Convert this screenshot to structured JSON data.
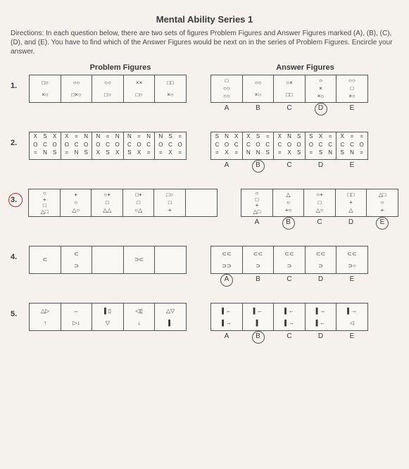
{
  "title": "Mental Ability Series 1",
  "directions": "Directions: In each question below, there are two sets of figures Problem Figures and Answer Figures marked (A), (B), (C), (D), and (E). You have to find which of the Answer Figures would be next on in the series of Problem Figures. Encircle your answer.",
  "problem_label": "Problem Figures",
  "answer_label": "Answer Figures",
  "letters": [
    "A",
    "B",
    "C",
    "D",
    "E"
  ],
  "questions": [
    {
      "num": "1.",
      "circled": false,
      "problems": [
        "□○ ×○",
        "○○ □×○",
        "○○ □○",
        "×× □○",
        "□□ ×○"
      ],
      "answers": [
        "□ ○○ ○○",
        "○○ ×○",
        "○× □□",
        "○ × ×○",
        "○○ □ ×○"
      ],
      "answer_circled": "D"
    },
    {
      "num": "2.",
      "circled": false,
      "grid": true,
      "problems": [
        [
          "X",
          "S",
          "X",
          "O",
          "C",
          "O",
          "=",
          "N",
          "S"
        ],
        [
          "X",
          "=",
          "N",
          "O",
          "C",
          "O",
          "=",
          "N",
          "S"
        ],
        [
          "N",
          "=",
          "N",
          "O",
          "C",
          "O",
          "X",
          "S",
          "X"
        ],
        [
          "N",
          "=",
          "N",
          "C",
          "O",
          "C",
          "S",
          "X",
          "="
        ],
        [
          "N",
          "S",
          "=",
          "O",
          "C",
          "O",
          "=",
          "X",
          "="
        ]
      ],
      "answers": [
        [
          "S",
          "N",
          "X",
          "C",
          "O",
          "C",
          "=",
          "X",
          "="
        ],
        [
          "X",
          "S",
          "=",
          "C",
          "O",
          "C",
          "N",
          "N",
          "S"
        ],
        [
          "X",
          "N",
          "S",
          "C",
          "O",
          "O",
          "=",
          "X",
          "S"
        ],
        [
          "S",
          "X",
          "=",
          "O",
          "C",
          "C",
          "=",
          "S",
          "N"
        ],
        [
          "X",
          "=",
          "=",
          "C",
          "C",
          "O",
          "S",
          "N",
          "="
        ]
      ],
      "answer_circled": "B"
    },
    {
      "num": "3.",
      "circled": true,
      "problems": [
        "○ + □ △□",
        "+ ○ △○",
        "○+ □ △△",
        "□+ □ ○△",
        "□○ □ +",
        ""
      ],
      "answers": [
        "○ □ + △□",
        "△ ○ +○",
        "○+ □ △○",
        "□□ + △",
        "△□ ○ +"
      ],
      "answer_circled": "B",
      "also_circled": "E"
    },
    {
      "num": "4.",
      "circled": false,
      "problems": [
        "⊂",
        "⊂ ⊃",
        "",
        "⊃⊂",
        ""
      ],
      "answers": [
        "⊂⊂ ⊃⊃",
        "⊂⊂ ⊃",
        "⊂⊂ ⊃",
        "⊂⊂ ⊃",
        "⊂⊂ ⊃○"
      ],
      "answer_circled": "A"
    },
    {
      "num": "5.",
      "circled": false,
      "problems": [
        "△▷ ↑",
        "← ▷↓",
        "▌▯ ▽",
        "◁▯ ↓",
        "△▽ ▌"
      ],
      "answers": [
        "▌← ▌→",
        "▌← ▌",
        "▌← ▌→",
        "▌→ ▌←",
        "▌→ ◁"
      ],
      "answer_circled": "B"
    }
  ],
  "colors": {
    "paper": "#f5f1ed",
    "ink": "#3a3a3a",
    "red": "#c04040",
    "border": "#555"
  }
}
